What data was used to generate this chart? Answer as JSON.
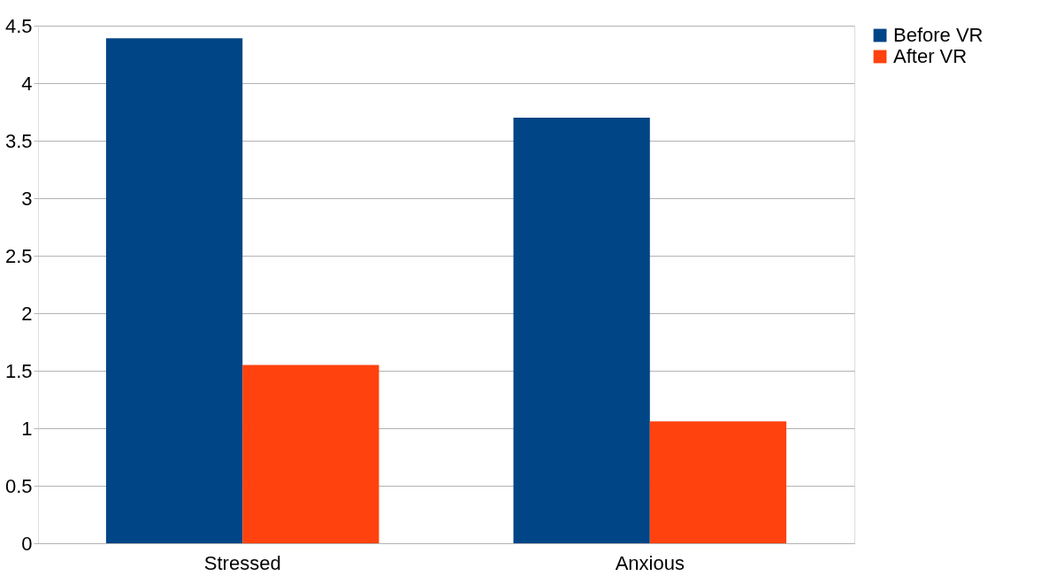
{
  "chart_data": {
    "type": "bar",
    "categories": [
      "Stressed",
      "Anxious"
    ],
    "series": [
      {
        "name": "Before VR",
        "color": "#004586",
        "values": [
          4.39,
          3.7
        ]
      },
      {
        "name": "After VR",
        "color": "#ff420e",
        "values": [
          1.55,
          1.06
        ]
      }
    ],
    "ylim": [
      0,
      4.5
    ],
    "yticks": [
      0,
      0.5,
      1,
      1.5,
      2,
      2.5,
      3,
      3.5,
      4,
      4.5
    ],
    "grid": "y",
    "legend": "right"
  }
}
